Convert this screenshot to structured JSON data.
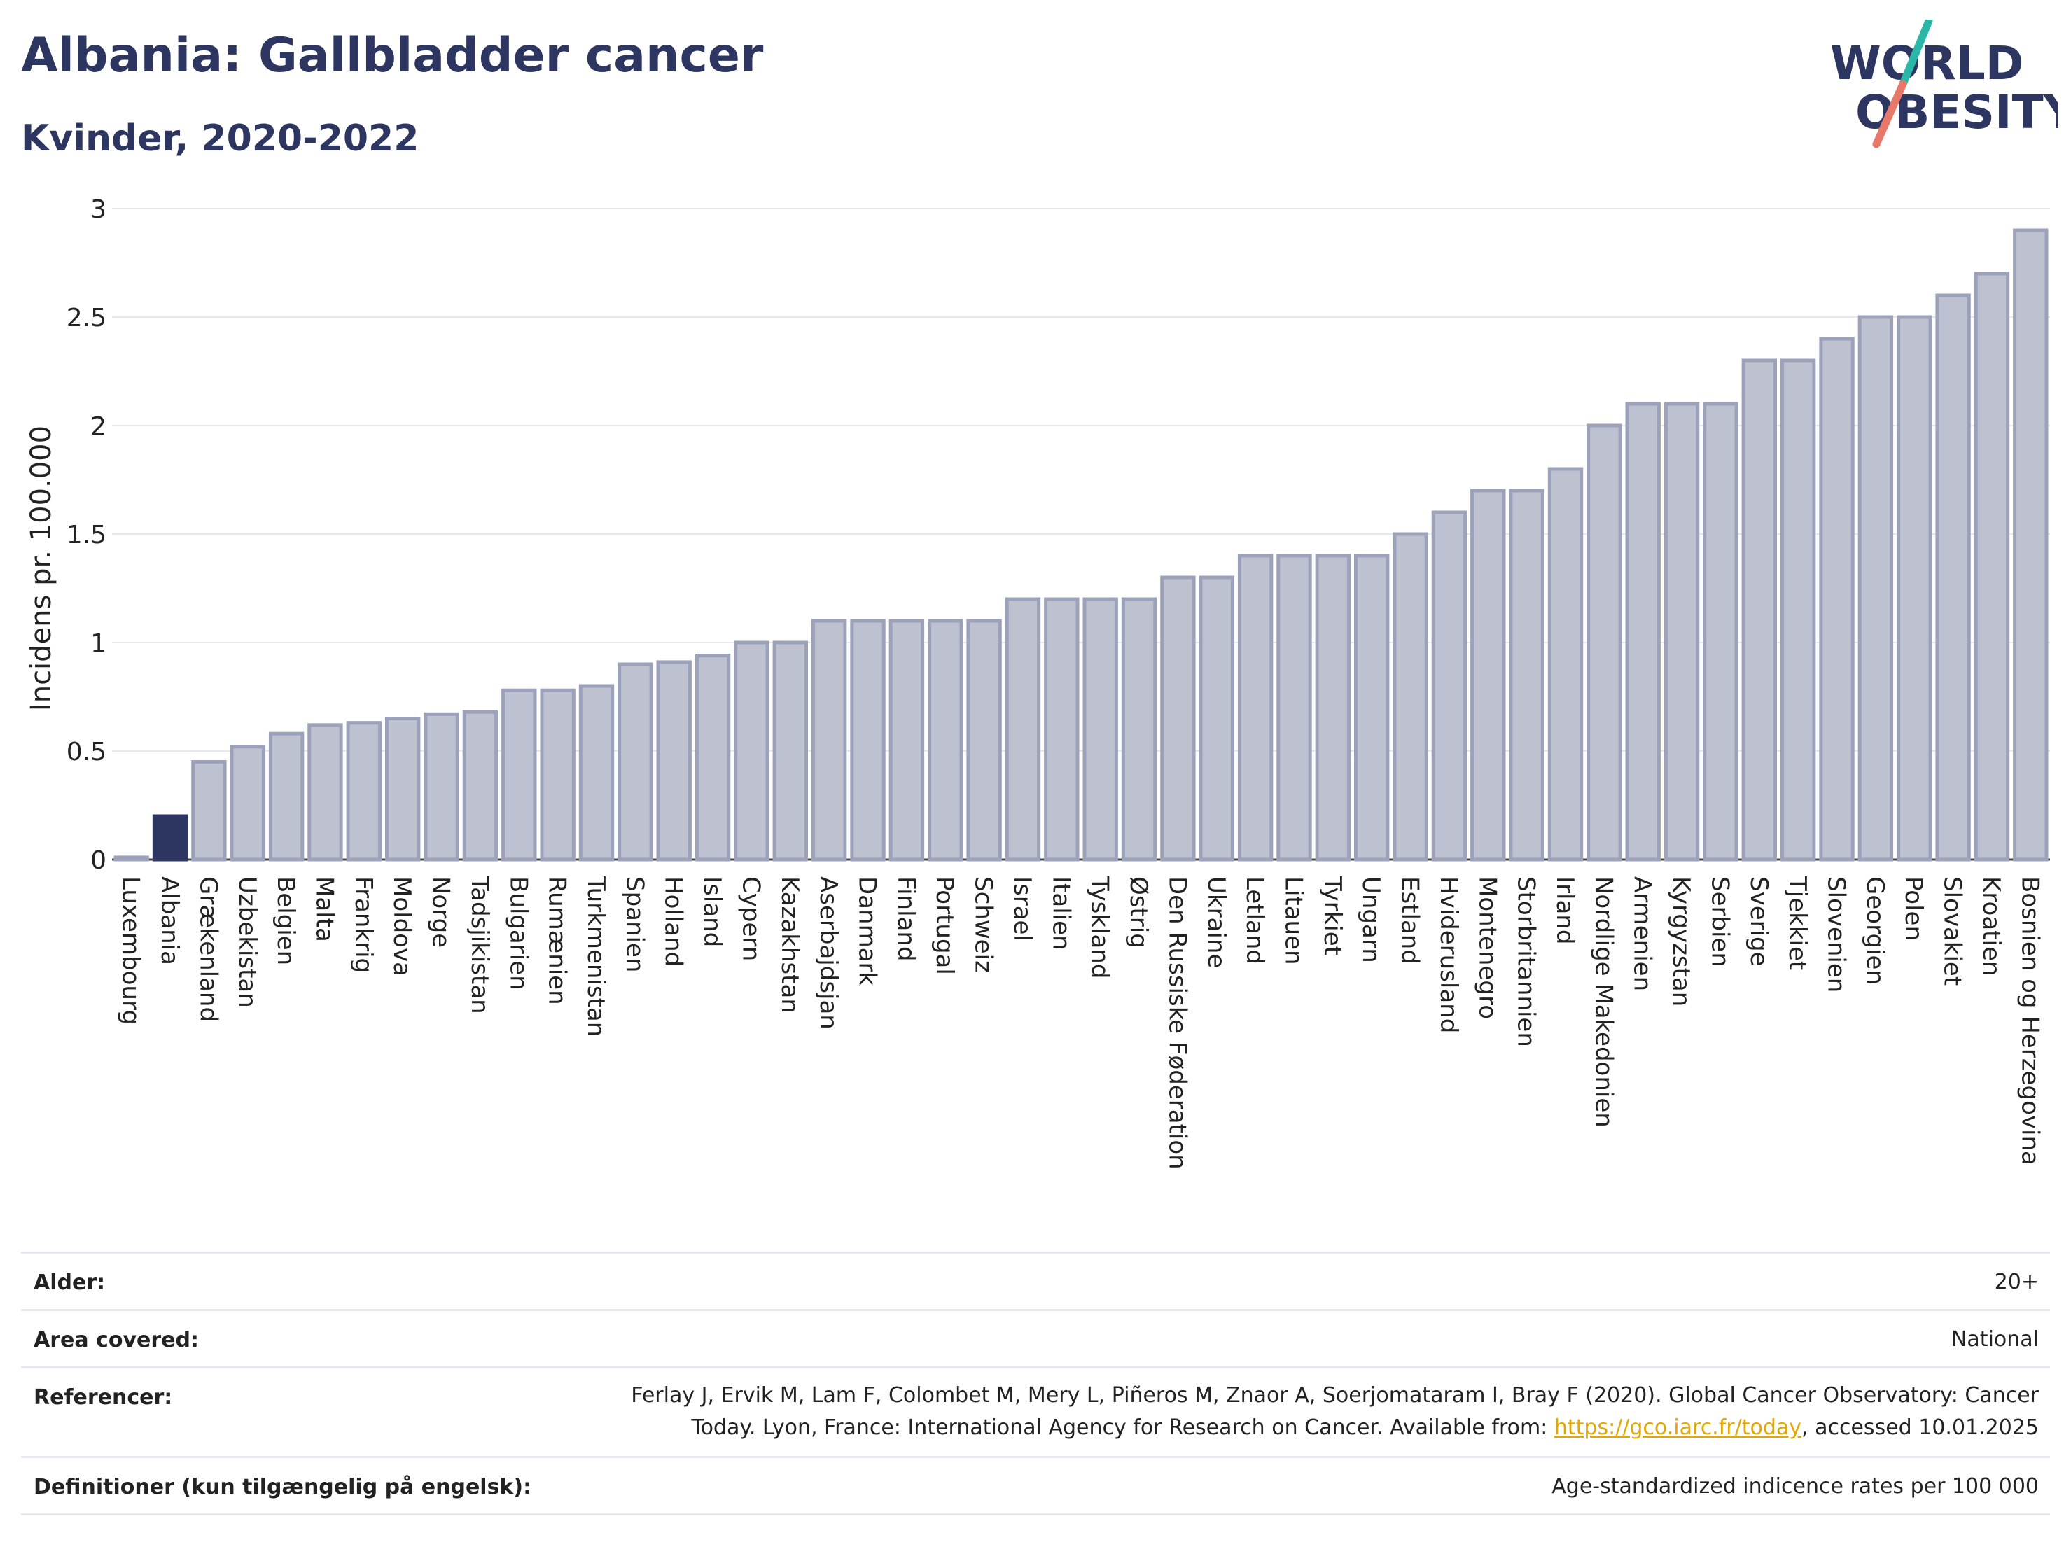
{
  "header": {
    "title": "Albania: Gallbladder cancer",
    "subtitle": "Kvinder, 2020-2022"
  },
  "logo": {
    "line1": "WORLD",
    "line2": "OBESITY",
    "accent_colors": [
      "#2bb7a8",
      "#e8786a"
    ]
  },
  "colors": {
    "highlight": "#2d3561",
    "bar_fill": "#bec1cf",
    "bar_stroke": "#9da2bb",
    "grid": "#e6e8ee"
  },
  "chart_data": {
    "type": "bar",
    "ylabel": "Incidens pr. 100.000",
    "ylim": [
      0,
      3
    ],
    "yticks": [
      0,
      0.5,
      1,
      1.5,
      2,
      2.5,
      3
    ],
    "ytick_labels": [
      "0",
      "0.5",
      "1",
      "1.5",
      "2",
      "2.5",
      "3"
    ],
    "grid": true,
    "highlight": "Albania",
    "categories": [
      "Luxembourg",
      "Albania",
      "Grækenland",
      "Uzbekistan",
      "Belgien",
      "Malta",
      "Frankrig",
      "Moldova",
      "Norge",
      "Tadsjikistan",
      "Bulgarien",
      "Rumænien",
      "Turkmenistan",
      "Spanien",
      "Holland",
      "Island",
      "Cypern",
      "Kazakhstan",
      "Aserbajdsjan",
      "Danmark",
      "Finland",
      "Portugal",
      "Schweiz",
      "Israel",
      "Italien",
      "Tyskland",
      "Østrig",
      "Den Russiske Føderation",
      "Ukraine",
      "Letland",
      "Litauen",
      "Tyrkiet",
      "Ungarn",
      "Estland",
      "Hviderusland",
      "Montenegro",
      "Storbritannien",
      "Irland",
      "Nordlige Makedonien",
      "Armenien",
      "Kyrgyzstan",
      "Serbien",
      "Sverige",
      "Tjekkiet",
      "Slovenien",
      "Georgien",
      "Polen",
      "Slovakiet",
      "Kroatien",
      "Bosnien og Herzegovina"
    ],
    "values": [
      0.01,
      0.2,
      0.45,
      0.52,
      0.58,
      0.62,
      0.63,
      0.65,
      0.67,
      0.68,
      0.78,
      0.78,
      0.8,
      0.9,
      0.91,
      0.94,
      1.0,
      1.0,
      1.1,
      1.1,
      1.1,
      1.1,
      1.1,
      1.2,
      1.2,
      1.2,
      1.2,
      1.3,
      1.3,
      1.4,
      1.4,
      1.4,
      1.4,
      1.5,
      1.6,
      1.7,
      1.7,
      1.8,
      2.0,
      2.1,
      2.1,
      2.1,
      2.3,
      2.3,
      2.4,
      2.5,
      2.5,
      2.6,
      2.7,
      2.9
    ]
  },
  "info": [
    {
      "label": "Alder:",
      "value": "20+"
    },
    {
      "label": "Area covered:",
      "value": "National"
    },
    {
      "label": "Referencer:",
      "value_line1": "Ferlay J, Ervik M, Lam F, Colombet M, Mery L, Piñeros M, Znaor A, Soerjomataram I, Bray F (2020). Global Cancer Observatory: Cancer",
      "value_line2_pre": "Today. Lyon, France: International Agency for Research on Cancer. Available from: ",
      "link": "https://gco.iarc.fr/today",
      "value_line2_post": ", accessed 10.01.2025"
    },
    {
      "label": "Definitioner (kun tilgængelig på engelsk):",
      "value": "Age-standardized indicence rates per 100 000"
    }
  ]
}
